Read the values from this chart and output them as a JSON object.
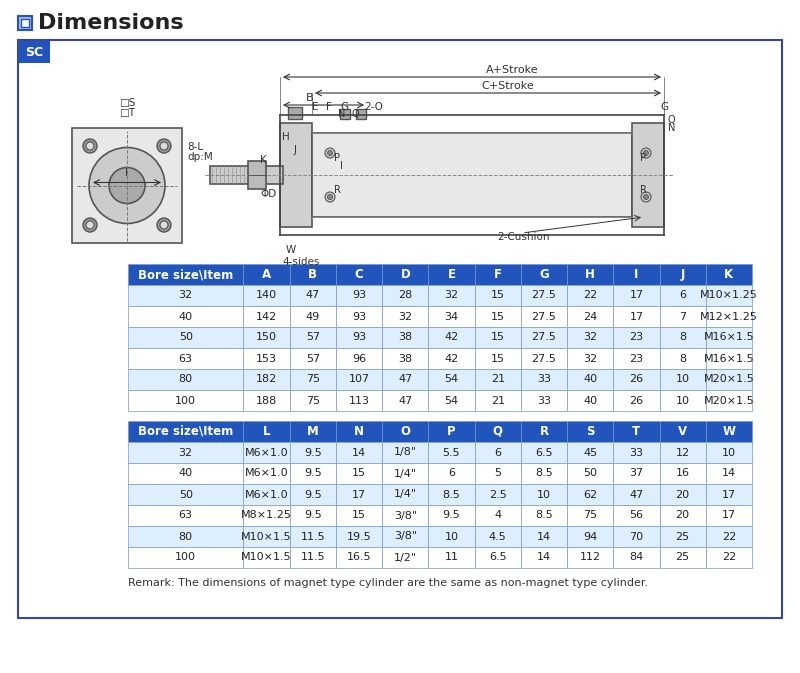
{
  "title": "Dimensions",
  "sc_label": "SC",
  "bg_color": "#ffffff",
  "border_color": "#3344aa",
  "header_bg": "#2255bb",
  "header_fg": "#ffffff",
  "alt_row_bg": "#ddeeff",
  "normal_row_bg": "#ffffff",
  "table1_headers": [
    "Bore size\\Item",
    "A",
    "B",
    "C",
    "D",
    "E",
    "F",
    "G",
    "H",
    "I",
    "J",
    "K"
  ],
  "table1_data": [
    [
      "32",
      "140",
      "47",
      "93",
      "28",
      "32",
      "15",
      "27.5",
      "22",
      "17",
      "6",
      "M10×1.25"
    ],
    [
      "40",
      "142",
      "49",
      "93",
      "32",
      "34",
      "15",
      "27.5",
      "24",
      "17",
      "7",
      "M12×1.25"
    ],
    [
      "50",
      "150",
      "57",
      "93",
      "38",
      "42",
      "15",
      "27.5",
      "32",
      "23",
      "8",
      "M16×1.5"
    ],
    [
      "63",
      "153",
      "57",
      "96",
      "38",
      "42",
      "15",
      "27.5",
      "32",
      "23",
      "8",
      "M16×1.5"
    ],
    [
      "80",
      "182",
      "75",
      "107",
      "47",
      "54",
      "21",
      "33",
      "40",
      "26",
      "10",
      "M20×1.5"
    ],
    [
      "100",
      "188",
      "75",
      "113",
      "47",
      "54",
      "21",
      "33",
      "40",
      "26",
      "10",
      "M20×1.5"
    ]
  ],
  "table2_headers": [
    "Bore size\\Item",
    "L",
    "M",
    "N",
    "O",
    "P",
    "Q",
    "R",
    "S",
    "T",
    "V",
    "W"
  ],
  "table2_data": [
    [
      "32",
      "M6×1.0",
      "9.5",
      "14",
      "1/8\"",
      "5.5",
      "6",
      "6.5",
      "45",
      "33",
      "12",
      "10"
    ],
    [
      "40",
      "M6×1.0",
      "9.5",
      "15",
      "1/4\"",
      "6",
      "5",
      "8.5",
      "50",
      "37",
      "16",
      "14"
    ],
    [
      "50",
      "M6×1.0",
      "9.5",
      "17",
      "1/4\"",
      "8.5",
      "2.5",
      "10",
      "62",
      "47",
      "20",
      "17"
    ],
    [
      "63",
      "M8×1.25",
      "9.5",
      "15",
      "3/8\"",
      "9.5",
      "4",
      "8.5",
      "75",
      "56",
      "20",
      "17"
    ],
    [
      "80",
      "M10×1.5",
      "11.5",
      "19.5",
      "3/8\"",
      "10",
      "4.5",
      "14",
      "94",
      "70",
      "25",
      "22"
    ],
    [
      "100",
      "M10×1.5",
      "11.5",
      "16.5",
      "1/2\"",
      "11",
      "6.5",
      "14",
      "112",
      "84",
      "25",
      "22"
    ]
  ],
  "remark": "Remark: The dimensions of magnet type cylinder are the same as non-magnet type cylinder."
}
